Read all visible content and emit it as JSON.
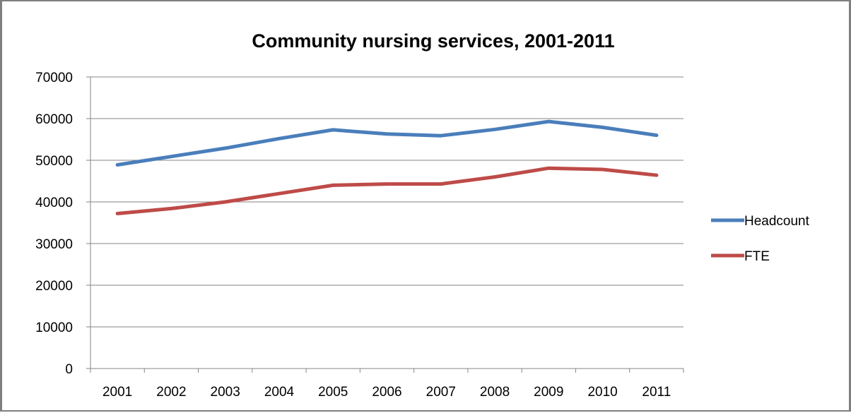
{
  "chart_data": {
    "type": "line",
    "title": "Community nursing services, 2001-2011",
    "xlabel": "",
    "ylabel": "",
    "categories": [
      "2001",
      "2002",
      "2003",
      "2004",
      "2005",
      "2006",
      "2007",
      "2008",
      "2009",
      "2010",
      "2011"
    ],
    "ylim": [
      0,
      70000
    ],
    "yticks": [
      0,
      10000,
      20000,
      30000,
      40000,
      50000,
      60000,
      70000
    ],
    "grid": true,
    "legend_position": "right",
    "series": [
      {
        "name": "Headcount",
        "color": "#4a7ebb",
        "values": [
          48900,
          50900,
          52900,
          55200,
          57300,
          56300,
          55900,
          57400,
          59300,
          57900,
          56000
        ]
      },
      {
        "name": "FTE",
        "color": "#be4b48",
        "values": [
          37200,
          38400,
          40000,
          42000,
          44000,
          44300,
          44300,
          46000,
          48100,
          47800,
          46400
        ]
      }
    ]
  }
}
